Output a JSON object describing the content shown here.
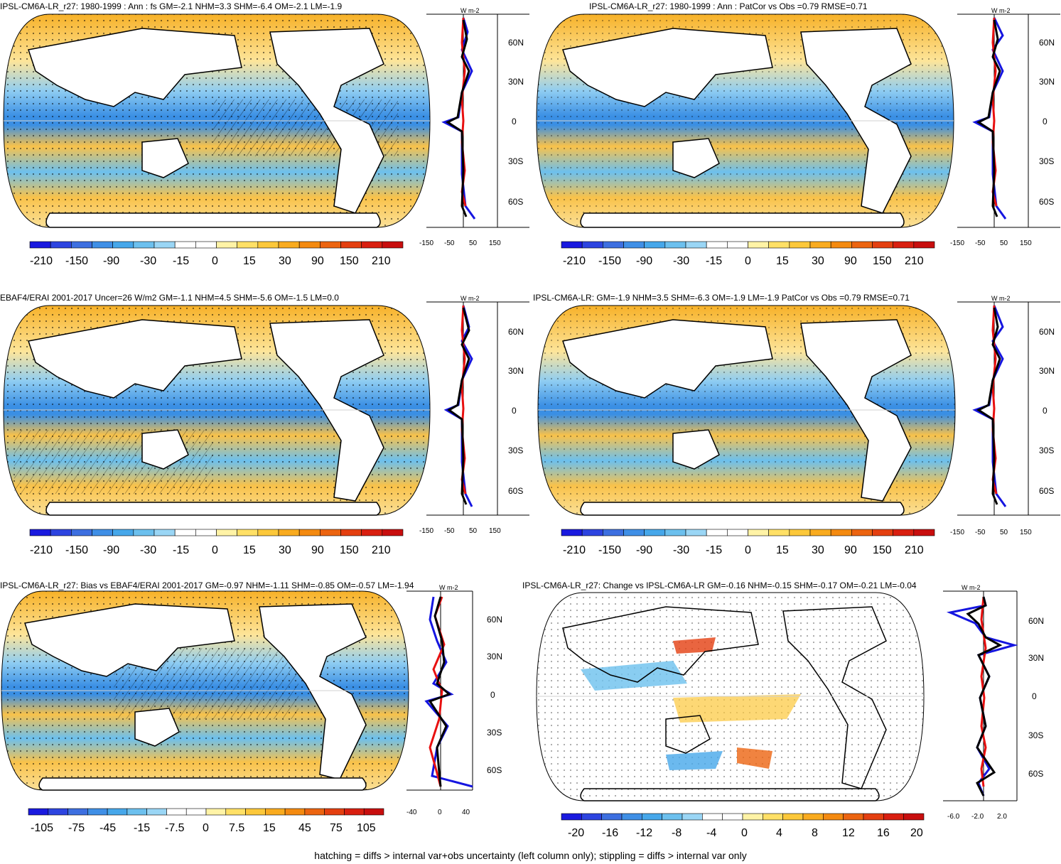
{
  "panels": [
    {
      "id": "p1",
      "title": "IPSL-CM6A-LR_r27: 1980-1999 : Ann : fs GM=-2.1 NHM=3.3 SHM=-6.4 OM=-2.1 LM=-1.9",
      "colorbar_labels": [
        "-210",
        "-150",
        "-90",
        "-30",
        "-15",
        "0",
        "15",
        "30",
        "90",
        "150",
        "210"
      ],
      "profile_units": "W m-2",
      "profile_xticks": [
        "-150",
        "-50",
        "50",
        "150"
      ],
      "lat_labels": [
        "60N",
        "30N",
        "0",
        "30S",
        "60S"
      ]
    },
    {
      "id": "p2",
      "title": "IPSL-CM6A-LR_r27: 1980-1999 : Ann : PatCor vs Obs =0.79 RMSE=0.71",
      "colorbar_labels": [
        "-210",
        "-150",
        "-90",
        "-30",
        "-15",
        "0",
        "15",
        "30",
        "90",
        "150",
        "210"
      ],
      "profile_units": "W m-2",
      "profile_xticks": [
        "-150",
        "-50",
        "50",
        "150"
      ],
      "lat_labels": [
        "60N",
        "30N",
        "0",
        "30S",
        "60S"
      ]
    },
    {
      "id": "p3",
      "title": "EBAF4/ERAI 2001-2017 Uncer=26 W/m2 GM=-1.1 NHM=4.5 SHM=-5.6 OM=-1.5 LM=0.0",
      "colorbar_labels": [
        "-210",
        "-150",
        "-90",
        "-30",
        "-15",
        "0",
        "15",
        "30",
        "90",
        "150",
        "210"
      ],
      "profile_units": "W m-2",
      "profile_xticks": [
        "-150",
        "-50",
        "50",
        "150"
      ],
      "lat_labels": [
        "60N",
        "30N",
        "0",
        "30S",
        "60S"
      ]
    },
    {
      "id": "p4",
      "title": "IPSL-CM6A-LR: GM=-1.9 NHM=3.5 SHM=-6.3 OM=-1.9 LM=-1.9 PatCor vs Obs =0.79 RMSE=0.71",
      "colorbar_labels": [
        "-210",
        "-150",
        "-90",
        "-30",
        "-15",
        "0",
        "15",
        "30",
        "90",
        "150",
        "210"
      ],
      "profile_units": "W m-2",
      "profile_xticks": [
        "-150",
        "-50",
        "50",
        "150"
      ],
      "lat_labels": [
        "60N",
        "30N",
        "0",
        "30S",
        "60S"
      ]
    },
    {
      "id": "p5",
      "title": "IPSL-CM6A-LR_r27: Bias vs EBAF4/ERAI 2001-2017 GM=-0.97 NHM=-1.11 SHM=-0.85 OM=-0.57 LM=-1.94",
      "colorbar_labels": [
        "-105",
        "-75",
        "-45",
        "-15",
        "-7.5",
        "0",
        "7.5",
        "15",
        "45",
        "75",
        "105"
      ],
      "profile_units": "W m-2",
      "profile_xticks": [
        "-40",
        "0",
        "40"
      ],
      "lat_labels": [
        "60N",
        "30N",
        "0",
        "30S",
        "60S"
      ]
    },
    {
      "id": "p6",
      "title": "IPSL-CM6A-LR_r27: Change vs IPSL-CM6A-LR GM=-0.16 NHM=-0.15 SHM=-0.17 OM=-0.21 LM=-0.04",
      "colorbar_labels": [
        "-20",
        "-16",
        "-12",
        "-8",
        "-4",
        "0",
        "4",
        "8",
        "12",
        "16",
        "20"
      ],
      "profile_units": "W m-2",
      "profile_xticks": [
        "-6.0",
        "-2.0",
        "2.0"
      ],
      "lat_labels": [
        "60N",
        "30N",
        "0",
        "30S",
        "60S"
      ]
    }
  ],
  "footer": "hatching = diffs > internal var+obs uncertainty (left column only); stippling = diffs > internal var only",
  "colors": {
    "palette": [
      "#1a1adf",
      "#2d44e0",
      "#3d6fe0",
      "#3f8fe6",
      "#46a7ea",
      "#6cc0ee",
      "#9ad6f5",
      "#ffffff",
      "#ffffff",
      "#fff3a6",
      "#ffe066",
      "#fcc83a",
      "#f9ab1f",
      "#f48a10",
      "#ec6410",
      "#e43f10",
      "#d91f10",
      "#c80e0e"
    ],
    "blue_line": "#1515e0",
    "red_line": "#e81010",
    "black_line": "#000000"
  }
}
